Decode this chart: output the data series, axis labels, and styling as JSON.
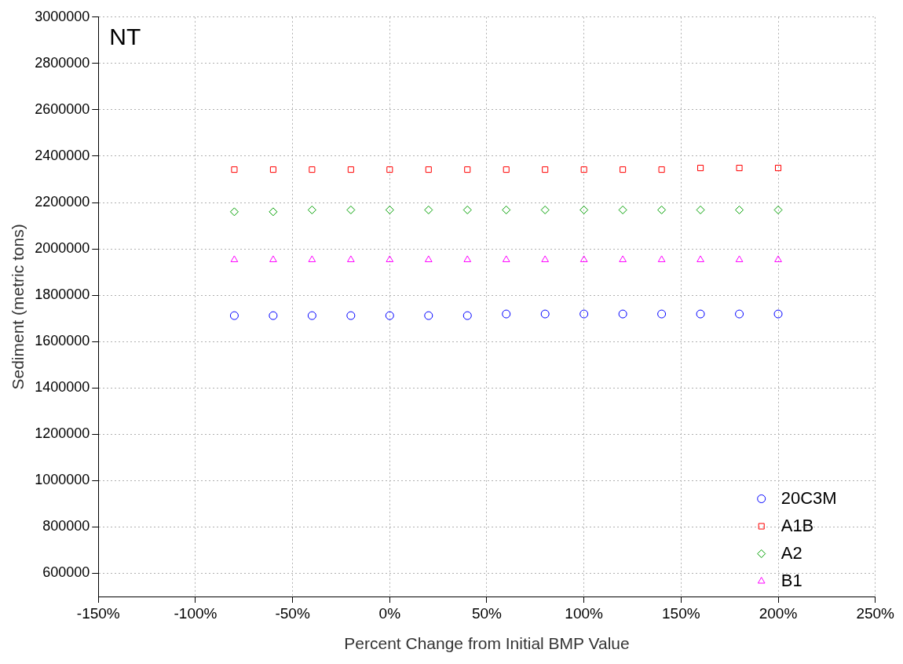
{
  "chart_data": {
    "type": "scatter",
    "xlabel": "Percent Change from Initial BMP Value",
    "ylabel": "Sediment (metric tons)",
    "annotations": [
      "NT"
    ],
    "x": [
      -80,
      -60,
      -40,
      -20,
      0,
      20,
      40,
      60,
      80,
      100,
      120,
      140,
      160,
      180,
      200
    ],
    "series": [
      {
        "name": "20C3M",
        "color": "#0000ff",
        "marker": "circle",
        "values": [
          1712000,
          1712000,
          1712000,
          1712000,
          1712000,
          1712000,
          1712000,
          1719000,
          1719000,
          1719000,
          1719000,
          1719000,
          1719000,
          1719000,
          1719000
        ]
      },
      {
        "name": "A1B",
        "color": "#ff0000",
        "marker": "square",
        "values": [
          2342000,
          2342000,
          2342000,
          2342000,
          2342000,
          2342000,
          2342000,
          2342000,
          2342000,
          2342000,
          2342000,
          2342000,
          2349000,
          2349000,
          2349000
        ]
      },
      {
        "name": "A2",
        "color": "#00a000",
        "marker": "diamond",
        "values": [
          2160000,
          2160000,
          2168000,
          2168000,
          2168000,
          2168000,
          2168000,
          2168000,
          2168000,
          2168000,
          2168000,
          2168000,
          2168000,
          2168000,
          2168000
        ]
      },
      {
        "name": "B1",
        "color": "#ff00ff",
        "marker": "triangle",
        "values": [
          1953000,
          1953000,
          1953000,
          1953000,
          1953000,
          1953000,
          1953000,
          1953000,
          1953000,
          1953000,
          1953000,
          1953000,
          1953000,
          1953000,
          1953000
        ]
      }
    ],
    "xlim": [
      -150,
      250
    ],
    "xticks": [
      {
        "value": -150,
        "label": "-150%"
      },
      {
        "value": -100,
        "label": "-100%"
      },
      {
        "value": -50,
        "label": "-50%"
      },
      {
        "value": 0,
        "label": "0%"
      },
      {
        "value": 50,
        "label": "50%"
      },
      {
        "value": 100,
        "label": "100%"
      },
      {
        "value": 150,
        "label": "150%"
      },
      {
        "value": 200,
        "label": "200%"
      },
      {
        "value": 250,
        "label": "250%"
      }
    ],
    "ylim": [
      500000,
      3000000
    ],
    "yticks": [
      600000,
      800000,
      1000000,
      1200000,
      1400000,
      1600000,
      1800000,
      2000000,
      2200000,
      2400000,
      2600000,
      2800000,
      3000000
    ],
    "grid": true,
    "legend": "bottom right"
  }
}
